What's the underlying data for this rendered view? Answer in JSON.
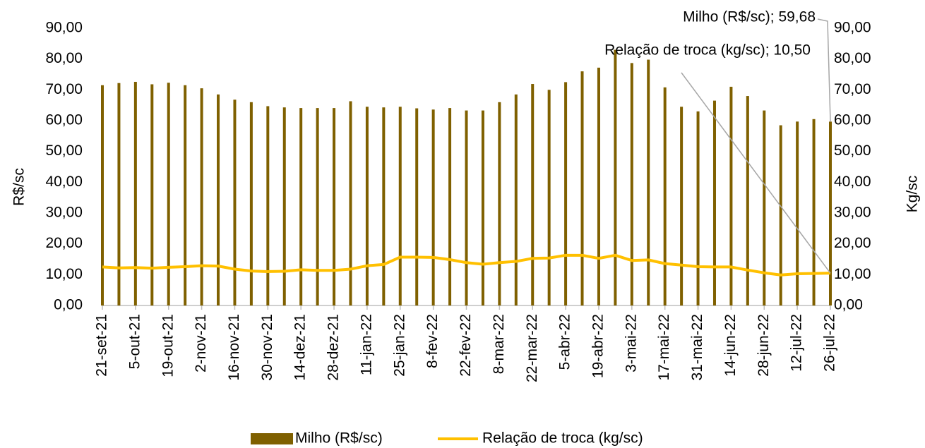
{
  "chart_data": {
    "type": "bar-line",
    "y_label": "R$/sc",
    "y2_label": "Kg/sc",
    "categories": [
      "21-set-21",
      null,
      "5-out-21",
      null,
      "19-out-21",
      null,
      "2-nov-21",
      null,
      "16-nov-21",
      null,
      "30-nov-21",
      null,
      "14-dez-21",
      null,
      "28-dez-21",
      null,
      "11-jan-22",
      null,
      "25-jan-22",
      null,
      "8-fev-22",
      null,
      "22-fev-22",
      null,
      "8-mar-22",
      null,
      "22-mar-22",
      null,
      "5-abr-22",
      null,
      "19-abr-22",
      null,
      "3-mai-22",
      null,
      "17-mai-22",
      null,
      "31-mai-22",
      null,
      "14-jun-22",
      null,
      "28-jun-22",
      null,
      "12-jul-22",
      null,
      "26-jul-22"
    ],
    "series": [
      {
        "name": "Milho (R$/sc)",
        "kind": "bar",
        "color": "#7f6000",
        "values": [
          71.5,
          72.2,
          72.6,
          71.8,
          72.3,
          71.5,
          70.5,
          68.5,
          66.8,
          66,
          64.7,
          64.3,
          64.1,
          64.1,
          64.1,
          66.3,
          64.5,
          64.3,
          64.5,
          64,
          63.6,
          64.1,
          63.3,
          63.3,
          66,
          68.5,
          71.9,
          70,
          72.5,
          76,
          77.2,
          83,
          78.7,
          79.8,
          70.8,
          64.5,
          63,
          66.5,
          71,
          68,
          63.3,
          58.5,
          59.7,
          60.5,
          59.68
        ],
        "value_labels": [
          null,
          null,
          null,
          null,
          null,
          null,
          null,
          null,
          null,
          null,
          null,
          null,
          null,
          null,
          null,
          null,
          null,
          null,
          null,
          null,
          null,
          null,
          null,
          null,
          null,
          null,
          null,
          null,
          null,
          null,
          null,
          null,
          null,
          null,
          null,
          null,
          null,
          null,
          null,
          null,
          null,
          null,
          null,
          null,
          "Milho (R$/sc); 59,68"
        ]
      },
      {
        "name": "Relação de troca (kg/sc)",
        "kind": "line",
        "axis": "y2",
        "color": "#ffc000",
        "values": [
          12.5,
          12.2,
          12.3,
          12.1,
          12.4,
          12.6,
          12.9,
          12.8,
          11.8,
          11.2,
          11,
          11.1,
          11.6,
          11.4,
          11.4,
          11.8,
          12.9,
          13.3,
          15.7,
          15.7,
          15.6,
          14.9,
          13.9,
          13.4,
          13.9,
          14.3,
          15.3,
          15.4,
          16.3,
          16.3,
          15.3,
          16.3,
          14.6,
          14.8,
          13.6,
          13.1,
          12.6,
          12.5,
          12.5,
          11.5,
          10.6,
          9.9,
          10.3,
          10.4,
          10.5
        ],
        "value_labels": [
          null,
          null,
          null,
          null,
          null,
          null,
          null,
          null,
          null,
          null,
          null,
          null,
          null,
          null,
          null,
          null,
          null,
          null,
          null,
          null,
          null,
          null,
          null,
          null,
          null,
          null,
          null,
          null,
          null,
          null,
          null,
          null,
          null,
          null,
          null,
          null,
          null,
          null,
          null,
          null,
          null,
          null,
          null,
          null,
          "Relação de troca (kg/sc); 10,50"
        ]
      }
    ],
    "ylim": [
      0,
      90
    ],
    "yticks": [
      {
        "value": 0,
        "label": "0,00"
      },
      {
        "value": 10,
        "label": "10,00"
      },
      {
        "value": 20,
        "label": "20,00"
      },
      {
        "value": 30,
        "label": "30,00"
      },
      {
        "value": 40,
        "label": "40,00"
      },
      {
        "value": 50,
        "label": "50,00"
      },
      {
        "value": 60,
        "label": "60,00"
      },
      {
        "value": 70,
        "label": "70,00"
      },
      {
        "value": 80,
        "label": "80,00"
      },
      {
        "value": 90,
        "label": "90,00"
      }
    ],
    "y2lim": [
      0,
      90
    ],
    "y2ticks": [
      {
        "value": 0,
        "label": "0,00"
      },
      {
        "value": 10,
        "label": "10,00"
      },
      {
        "value": 20,
        "label": "20,00"
      },
      {
        "value": 30,
        "label": "30,00"
      },
      {
        "value": 40,
        "label": "40,00"
      },
      {
        "value": 50,
        "label": "50,00"
      },
      {
        "value": 60,
        "label": "60,00"
      },
      {
        "value": 70,
        "label": "70,00"
      },
      {
        "value": 80,
        "label": "80,00"
      },
      {
        "value": 90,
        "label": "90,00"
      }
    ]
  }
}
